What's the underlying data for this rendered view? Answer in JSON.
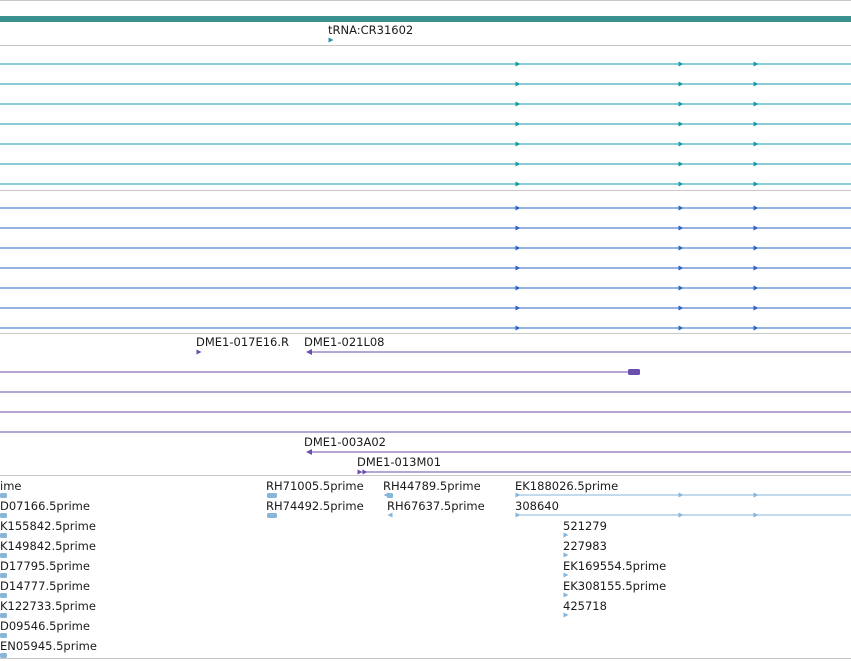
{
  "colors": {
    "top_bar": "#3a8f8f",
    "trna_color": "#2a8fb0",
    "teal_track": "#1a9aa8",
    "blue_track": "#2e66c4",
    "purple_track": "#6a4fae",
    "est_track": "#86b6da",
    "separator": "#c8c8c8"
  },
  "trna": {
    "label": "tRNA:CR31602"
  },
  "clone_group_1": {
    "label_a": "DME1-017E16.R",
    "label_b": "DME1-021L08"
  },
  "clone_group_2": {
    "label_a": "DME1-003A02",
    "label_b": "DME1-013M01"
  },
  "est_labels": {
    "left": [
      "ime",
      "D07166.5prime",
      "K155842.5prime",
      "K149842.5prime",
      "D17795.5prime",
      "D14777.5prime",
      "K122733.5prime",
      "D09546.5prime",
      "EN05945.5prime"
    ],
    "mid_a": [
      "RH71005.5prime",
      "RH74492.5prime"
    ],
    "mid_b": [
      "RH44789.5prime",
      "RH67637.5prime"
    ],
    "right": [
      "EK188026.5prime",
      "308640",
      "521279",
      "227983",
      "EK169554.5prime",
      "EK308155.5prime",
      "425718"
    ]
  }
}
